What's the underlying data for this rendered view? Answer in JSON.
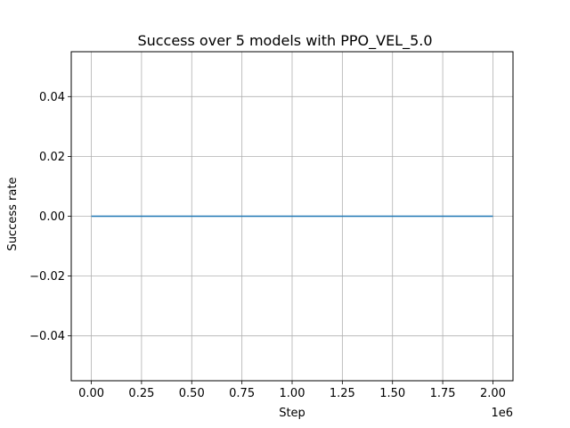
{
  "chart_data": {
    "type": "line",
    "title": "Success over 5 models with PPO_VEL_5.0",
    "xlabel": "Step",
    "ylabel": "Success rate",
    "x_offset_text": "1e6",
    "xlim": [
      -0.1,
      2.1
    ],
    "ylim": [
      -0.055,
      0.055
    ],
    "x_ticks": [
      0.0,
      0.25,
      0.5,
      0.75,
      1.0,
      1.25,
      1.5,
      1.75,
      2.0
    ],
    "x_tick_labels": [
      "0.00",
      "0.25",
      "0.50",
      "0.75",
      "1.00",
      "1.25",
      "1.50",
      "1.75",
      "2.00"
    ],
    "y_ticks": [
      -0.04,
      -0.02,
      0.0,
      0.02,
      0.04
    ],
    "y_tick_labels": [
      "−0.04",
      "−0.02",
      "0.00",
      "0.02",
      "0.04"
    ],
    "grid": true,
    "series": [
      {
        "color": "#1f77b4",
        "x": [
          0.0,
          2.0
        ],
        "y": [
          0.0,
          0.0
        ]
      }
    ]
  }
}
